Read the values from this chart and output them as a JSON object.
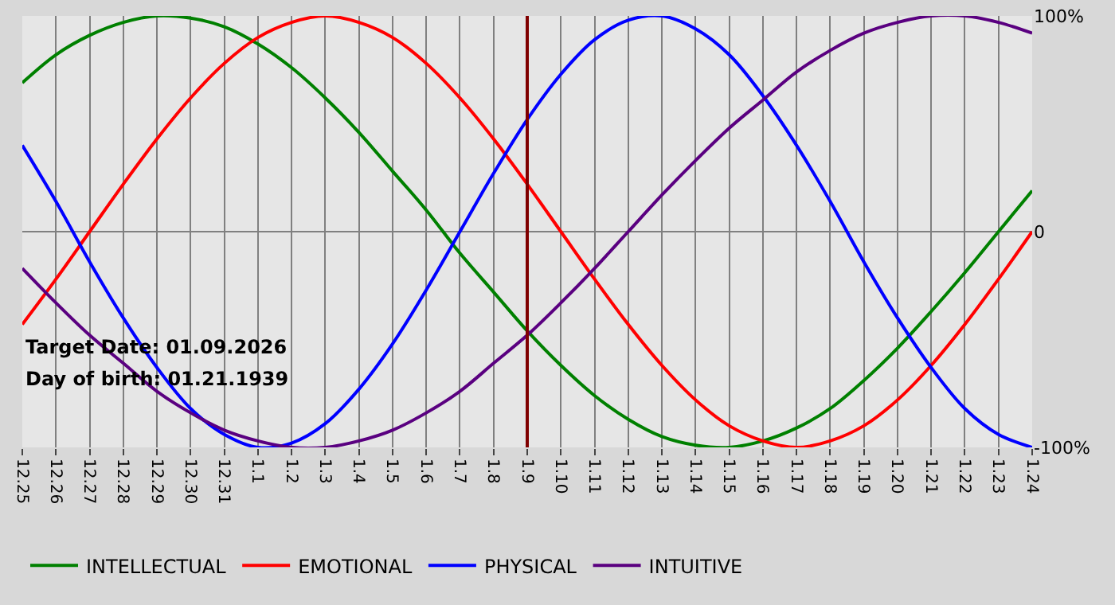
{
  "chart_data": {
    "type": "line",
    "categories": [
      "12.25",
      "12.26",
      "12.27",
      "12.28",
      "12.29",
      "12.30",
      "12.31",
      "1.1",
      "1.2",
      "1.3",
      "1.4",
      "1.5",
      "1.6",
      "1.7",
      "1.8",
      "1.9",
      "1.10",
      "1.11",
      "1.12",
      "1.13",
      "1.14",
      "1.15",
      "1.16",
      "1.17",
      "1.18",
      "1.19",
      "1.20",
      "1.21",
      "1.22",
      "1.23",
      "1.24"
    ],
    "series": [
      {
        "name": "INTELLECTUAL",
        "color": "#008000",
        "values": [
          69,
          82,
          91,
          97,
          100,
          99,
          95,
          87,
          76,
          62,
          46,
          28,
          10,
          -10,
          -28,
          -46,
          -62,
          -76,
          -87,
          -95,
          -99,
          -100,
          -97,
          -91,
          -82,
          -69,
          -54,
          -37,
          -19,
          0,
          19
        ]
      },
      {
        "name": "EMOTIONAL",
        "color": "#ff0000",
        "values": [
          -43,
          -22,
          0,
          22,
          43,
          62,
          78,
          90,
          97,
          100,
          97,
          90,
          78,
          62,
          43,
          22,
          0,
          -22,
          -43,
          -62,
          -78,
          -90,
          -97,
          -100,
          -97,
          -90,
          -78,
          -62,
          -43,
          -22,
          0
        ]
      },
      {
        "name": "PHYSICAL",
        "color": "#0000ff",
        "values": [
          40,
          14,
          -14,
          -40,
          -63,
          -82,
          -94,
          -100,
          -98,
          -89,
          -73,
          -52,
          -27,
          0,
          27,
          52,
          73,
          89,
          98,
          100,
          94,
          82,
          63,
          40,
          14,
          -14,
          -40,
          -63,
          -82,
          -94,
          -100
        ]
      },
      {
        "name": "INTUITIVE",
        "color": "#5a0080",
        "values": [
          -17,
          -33,
          -48,
          -61,
          -74,
          -84,
          -92,
          -97,
          -100,
          -100,
          -97,
          -92,
          -84,
          -74,
          -61,
          -48,
          -33,
          -17,
          0,
          17,
          33,
          48,
          61,
          74,
          84,
          92,
          97,
          100,
          100,
          97,
          92
        ]
      }
    ],
    "ylim": [
      -100,
      100
    ],
    "yticks": [
      {
        "value": -100,
        "label": "-100%"
      },
      0,
      {
        "value": 100,
        "label": "100%"
      }
    ],
    "grid": true,
    "legend": "bottom left",
    "marker": "none",
    "line_style": "solid",
    "ref_lines": [
      {
        "axis": "x",
        "value": "1.9",
        "color": "#800000"
      }
    ],
    "annotations": [
      "Target Date: 01.09.2026",
      "Day of birth: 01.21.1939"
    ]
  }
}
